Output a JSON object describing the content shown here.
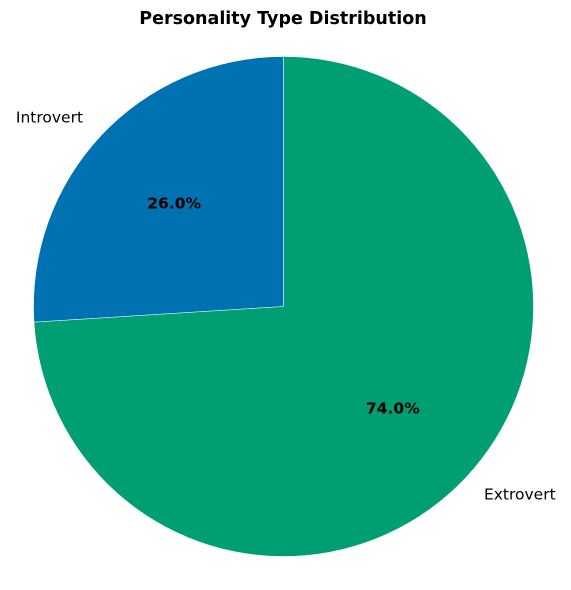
{
  "chart_data": {
    "type": "pie",
    "title": "Personality Type Distribution",
    "labels": [
      "Introvert",
      "Extrovert"
    ],
    "values": [
      26.0,
      74.0
    ],
    "autopct_labels": [
      "26.0%",
      "74.0%"
    ],
    "colors": [
      "#0072B2",
      "#009E73"
    ],
    "start_angle_deg": 90,
    "direction": "counterclockwise",
    "slice_edge_color": "#ffffff"
  }
}
